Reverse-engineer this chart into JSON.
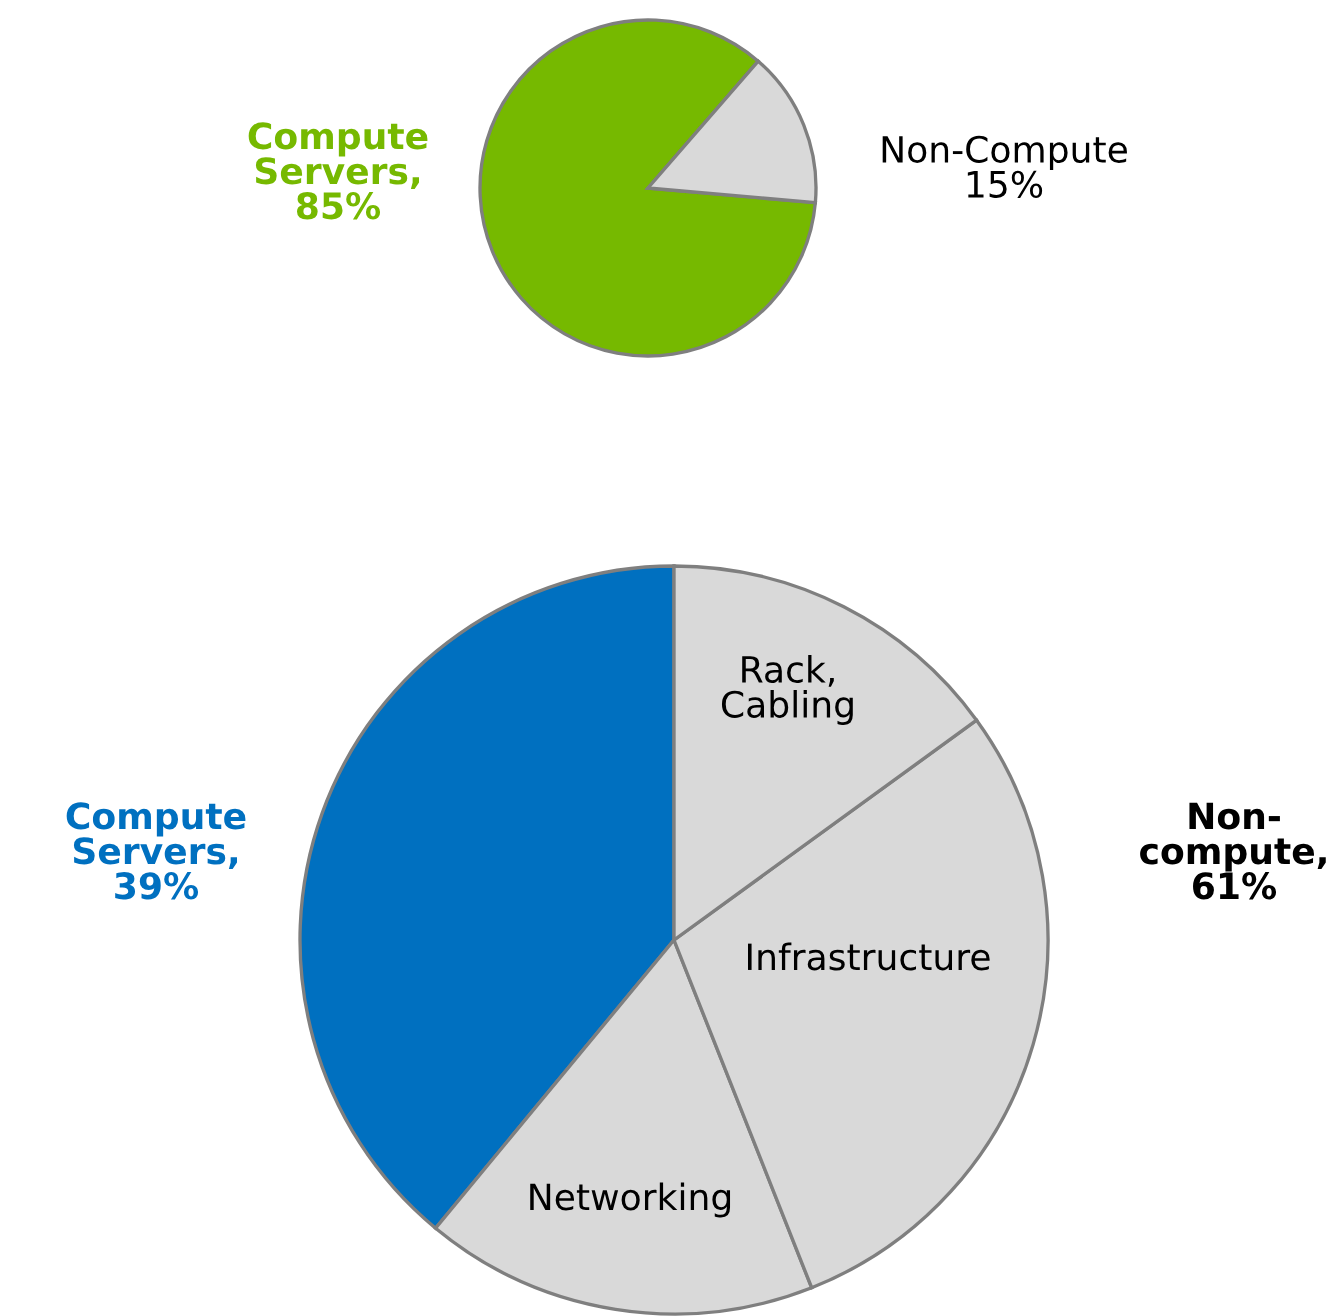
{
  "chart_data": [
    {
      "type": "pie",
      "categories": [
        "Compute Servers, 85%",
        "Non-Compute 15%"
      ],
      "values": [
        85,
        15
      ],
      "colors": [
        "#76b900",
        "#d9d9d9"
      ]
    },
    {
      "type": "pie",
      "categories": [
        "Compute Servers, 39%",
        "Networking",
        "Infrastructure",
        "Rack, Cabling"
      ],
      "values": [
        39,
        17,
        29,
        15
      ],
      "colors": [
        "#0070c0",
        "#d9d9d9",
        "#d9d9d9",
        "#d9d9d9"
      ],
      "annotations": [
        "Non-compute, 61%"
      ]
    }
  ]
}
